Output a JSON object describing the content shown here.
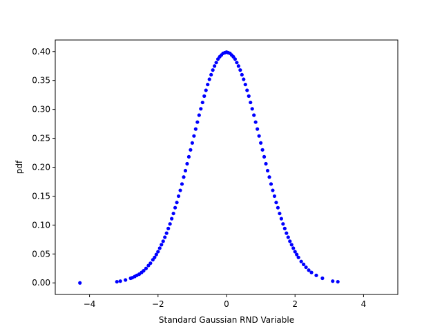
{
  "chart_data": {
    "type": "scatter",
    "title": "",
    "xlabel": "Standard Gaussian RND Variable",
    "ylabel": "pdf",
    "xlim": [
      -5.0,
      5.0
    ],
    "ylim": [
      -0.02,
      0.42
    ],
    "xticks": [
      -4,
      -2,
      0,
      2,
      4
    ],
    "xtick_labels": [
      "−4",
      "−2",
      "0",
      "2",
      "4"
    ],
    "yticks": [
      0.0,
      0.05,
      0.1,
      0.15,
      0.2,
      0.25,
      0.3,
      0.35,
      0.4
    ],
    "ytick_labels": [
      "0.00",
      "0.05",
      "0.10",
      "0.15",
      "0.20",
      "0.25",
      "0.30",
      "0.35",
      "0.40"
    ],
    "grid": false,
    "marker_color": "#0000ff",
    "series": [
      {
        "x": [
          -4.28,
          -3.2,
          -3.1,
          -2.95,
          -2.8,
          -2.75,
          -2.68,
          -2.62,
          -2.55,
          -2.48,
          -2.42,
          -2.35,
          -2.28,
          -2.22,
          -2.15,
          -2.1,
          -2.05,
          -2.0,
          -1.95,
          -1.9,
          -1.85,
          -1.8,
          -1.75,
          -1.7,
          -1.65,
          -1.6,
          -1.55,
          -1.5,
          -1.45,
          -1.4,
          -1.35,
          -1.3,
          -1.25,
          -1.2,
          -1.15,
          -1.1,
          -1.05,
          -1.0,
          -0.95,
          -0.9,
          -0.85,
          -0.8,
          -0.75,
          -0.7,
          -0.65,
          -0.6,
          -0.55,
          -0.5,
          -0.45,
          -0.4,
          -0.35,
          -0.3,
          -0.25,
          -0.2,
          -0.15,
          -0.1,
          -0.05,
          0.0,
          0.05,
          0.1,
          0.15,
          0.2,
          0.25,
          0.3,
          0.35,
          0.4,
          0.45,
          0.5,
          0.55,
          0.6,
          0.65,
          0.7,
          0.75,
          0.8,
          0.85,
          0.9,
          0.95,
          1.0,
          1.05,
          1.1,
          1.15,
          1.2,
          1.25,
          1.3,
          1.35,
          1.4,
          1.45,
          1.5,
          1.55,
          1.6,
          1.65,
          1.7,
          1.75,
          1.8,
          1.85,
          1.9,
          1.95,
          2.0,
          2.05,
          2.1,
          2.18,
          2.25,
          2.32,
          2.4,
          2.48,
          2.62,
          2.8,
          3.1,
          3.25
        ],
        "y": [
          0.0,
          0.002,
          0.003,
          0.005,
          0.008,
          0.009,
          0.011,
          0.013,
          0.015,
          0.018,
          0.021,
          0.025,
          0.03,
          0.034,
          0.04,
          0.044,
          0.049,
          0.054,
          0.06,
          0.066,
          0.072,
          0.079,
          0.086,
          0.094,
          0.102,
          0.111,
          0.12,
          0.13,
          0.139,
          0.15,
          0.16,
          0.171,
          0.183,
          0.194,
          0.206,
          0.218,
          0.23,
          0.242,
          0.254,
          0.266,
          0.278,
          0.29,
          0.301,
          0.312,
          0.323,
          0.333,
          0.343,
          0.352,
          0.36,
          0.368,
          0.375,
          0.381,
          0.387,
          0.391,
          0.394,
          0.397,
          0.398,
          0.399,
          0.398,
          0.397,
          0.394,
          0.391,
          0.387,
          0.381,
          0.375,
          0.368,
          0.36,
          0.352,
          0.343,
          0.333,
          0.323,
          0.312,
          0.301,
          0.29,
          0.278,
          0.266,
          0.254,
          0.242,
          0.23,
          0.218,
          0.206,
          0.194,
          0.183,
          0.171,
          0.16,
          0.15,
          0.139,
          0.13,
          0.12,
          0.111,
          0.102,
          0.094,
          0.086,
          0.079,
          0.072,
          0.066,
          0.06,
          0.054,
          0.049,
          0.044,
          0.037,
          0.032,
          0.027,
          0.022,
          0.018,
          0.013,
          0.008,
          0.003,
          0.002
        ]
      }
    ]
  }
}
